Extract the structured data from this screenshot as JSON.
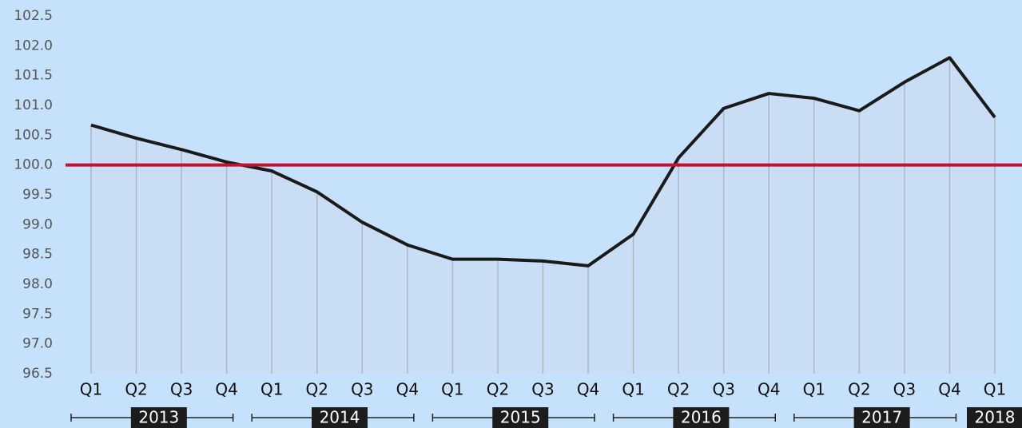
{
  "chart_data": {
    "type": "line",
    "categories": [
      "Q1",
      "Q2",
      "Q3",
      "Q4",
      "Q1",
      "Q2",
      "Q3",
      "Q4",
      "Q1",
      "Q2",
      "Q3",
      "Q4",
      "Q1",
      "Q2",
      "Q3",
      "Q4",
      "Q1",
      "Q2",
      "Q3",
      "Q4",
      "Q1"
    ],
    "year_labels": [
      "2013",
      "2014",
      "2015",
      "2016",
      "2017",
      "2018"
    ],
    "series": [
      {
        "color": "#1a1a1a",
        "area_color": "#c9ddf2",
        "values": [
          100.67,
          100.45,
          100.26,
          100.05,
          99.9,
          99.55,
          99.04,
          98.66,
          98.42,
          98.42,
          98.39,
          98.31,
          98.84,
          100.12,
          100.95,
          101.2,
          101.12,
          100.91,
          101.39,
          101.8,
          100.8
        ]
      }
    ],
    "reference_line": {
      "value": 100,
      "color": "#c8102e"
    },
    "ylim": [
      96.5,
      102.5
    ],
    "yticks": [
      96.5,
      {
        "value": 97,
        "label": "97.0"
      },
      97.5,
      {
        "value": 98,
        "label": "98.0"
      },
      98.5,
      {
        "value": 99,
        "label": "99.0"
      },
      99.5,
      {
        "value": 100,
        "label": "100.0"
      },
      100.5,
      {
        "value": 101,
        "label": "101.0"
      },
      101.5,
      {
        "value": 102,
        "label": "102.0"
      },
      102.5
    ]
  }
}
